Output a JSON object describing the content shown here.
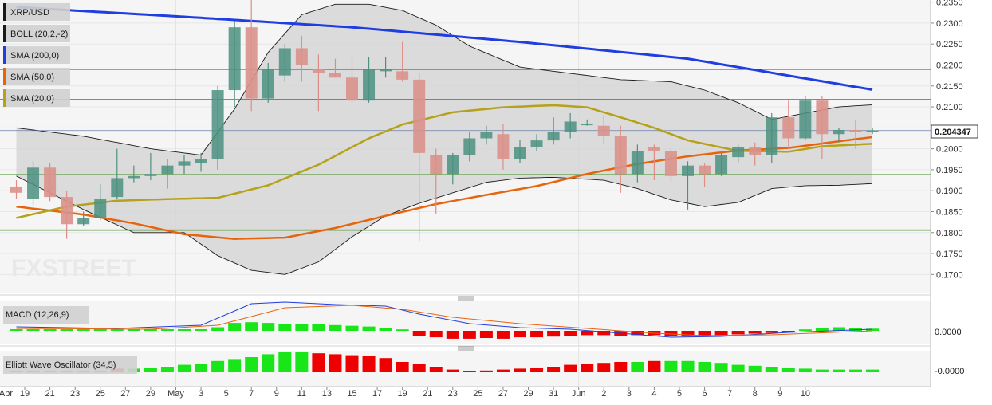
{
  "legend": [
    {
      "label": "XRP/USD",
      "color": "#1a1a1a"
    },
    {
      "label": "BOLL (20,2,-2)",
      "color": "#1a1a1a"
    },
    {
      "label": "SMA (200,0)",
      "color": "#1f3de0"
    },
    {
      "label": "SMA (50,0)",
      "color": "#e8640c"
    },
    {
      "label": "SMA (20,0)",
      "color": "#b5a21a"
    }
  ],
  "watermark": "FXSTREET",
  "last_price": "0.204347",
  "macd_label": "MACD (12,26,9)",
  "ewo_label": "Elliott Wave Oscillator (34,5)",
  "macd_tick": "0.0000",
  "ewo_tick": "-0.0000",
  "colors": {
    "up": "#4b9180",
    "down": "#e08c86",
    "upFill": "#7fa99b",
    "downFill": "#d9928b",
    "green": "#18e618",
    "red": "#ee0000"
  },
  "chart_data": {
    "type": "candlestick",
    "ylim": [
      0.1655,
      0.2355
    ],
    "y_ticks": [
      "0.2350",
      "0.2300",
      "0.2250",
      "0.2200",
      "0.2150",
      "0.2100",
      "0.2050",
      "0.2000",
      "0.1950",
      "0.1900",
      "0.1850",
      "0.1800",
      "0.1750",
      "0.1700"
    ],
    "x_ticks": [
      "Apr",
      "19",
      "21",
      "23",
      "25",
      "27",
      "29",
      "May",
      "3",
      "5",
      "7",
      "9",
      "11",
      "13",
      "15",
      "17",
      "19",
      "21",
      "23",
      "25",
      "27",
      "29",
      "31",
      "Jun",
      "2",
      "3",
      "4",
      "5",
      "6",
      "7",
      "8",
      "9",
      "10"
    ],
    "candles": [
      {
        "o": 0.191,
        "h": 0.1925,
        "l": 0.188,
        "c": 0.1895
      },
      {
        "o": 0.188,
        "h": 0.197,
        "l": 0.1865,
        "c": 0.1955
      },
      {
        "o": 0.1955,
        "h": 0.1965,
        "l": 0.1875,
        "c": 0.1885
      },
      {
        "o": 0.1885,
        "h": 0.19,
        "l": 0.1785,
        "c": 0.182
      },
      {
        "o": 0.182,
        "h": 0.185,
        "l": 0.1815,
        "c": 0.1835
      },
      {
        "o": 0.1835,
        "h": 0.1915,
        "l": 0.183,
        "c": 0.188
      },
      {
        "o": 0.1885,
        "h": 0.2,
        "l": 0.188,
        "c": 0.193
      },
      {
        "o": 0.193,
        "h": 0.196,
        "l": 0.192,
        "c": 0.1935
      },
      {
        "o": 0.1935,
        "h": 0.199,
        "l": 0.1925,
        "c": 0.194
      },
      {
        "o": 0.194,
        "h": 0.1975,
        "l": 0.1905,
        "c": 0.196
      },
      {
        "o": 0.196,
        "h": 0.1985,
        "l": 0.194,
        "c": 0.197
      },
      {
        "o": 0.1965,
        "h": 0.199,
        "l": 0.1945,
        "c": 0.1975
      },
      {
        "o": 0.1975,
        "h": 0.215,
        "l": 0.195,
        "c": 0.214
      },
      {
        "o": 0.214,
        "h": 0.2305,
        "l": 0.21,
        "c": 0.229
      },
      {
        "o": 0.229,
        "h": 0.2355,
        "l": 0.209,
        "c": 0.212
      },
      {
        "o": 0.212,
        "h": 0.2205,
        "l": 0.211,
        "c": 0.219
      },
      {
        "o": 0.2175,
        "h": 0.225,
        "l": 0.216,
        "c": 0.224
      },
      {
        "o": 0.224,
        "h": 0.227,
        "l": 0.216,
        "c": 0.22
      },
      {
        "o": 0.219,
        "h": 0.2225,
        "l": 0.209,
        "c": 0.218
      },
      {
        "o": 0.218,
        "h": 0.2215,
        "l": 0.217,
        "c": 0.217
      },
      {
        "o": 0.217,
        "h": 0.222,
        "l": 0.211,
        "c": 0.2115
      },
      {
        "o": 0.2115,
        "h": 0.222,
        "l": 0.211,
        "c": 0.219
      },
      {
        "o": 0.2185,
        "h": 0.222,
        "l": 0.217,
        "c": 0.219
      },
      {
        "o": 0.2185,
        "h": 0.2255,
        "l": 0.216,
        "c": 0.2165
      },
      {
        "o": 0.2165,
        "h": 0.218,
        "l": 0.178,
        "c": 0.199
      },
      {
        "o": 0.1985,
        "h": 0.2,
        "l": 0.1845,
        "c": 0.194
      },
      {
        "o": 0.194,
        "h": 0.199,
        "l": 0.1915,
        "c": 0.1985
      },
      {
        "o": 0.1985,
        "h": 0.204,
        "l": 0.197,
        "c": 0.2025
      },
      {
        "o": 0.2025,
        "h": 0.2055,
        "l": 0.201,
        "c": 0.204
      },
      {
        "o": 0.2035,
        "h": 0.206,
        "l": 0.195,
        "c": 0.1975
      },
      {
        "o": 0.1975,
        "h": 0.202,
        "l": 0.1965,
        "c": 0.2005
      },
      {
        "o": 0.2005,
        "h": 0.2035,
        "l": 0.1995,
        "c": 0.202
      },
      {
        "o": 0.202,
        "h": 0.2075,
        "l": 0.201,
        "c": 0.204
      },
      {
        "o": 0.204,
        "h": 0.2085,
        "l": 0.2025,
        "c": 0.2065
      },
      {
        "o": 0.206,
        "h": 0.207,
        "l": 0.2055,
        "c": 0.206
      },
      {
        "o": 0.2055,
        "h": 0.208,
        "l": 0.201,
        "c": 0.203
      },
      {
        "o": 0.203,
        "h": 0.2055,
        "l": 0.1895,
        "c": 0.194
      },
      {
        "o": 0.194,
        "h": 0.201,
        "l": 0.192,
        "c": 0.1995
      },
      {
        "o": 0.2005,
        "h": 0.201,
        "l": 0.1925,
        "c": 0.1995
      },
      {
        "o": 0.1995,
        "h": 0.2,
        "l": 0.192,
        "c": 0.1935
      },
      {
        "o": 0.1935,
        "h": 0.197,
        "l": 0.1855,
        "c": 0.196
      },
      {
        "o": 0.196,
        "h": 0.1965,
        "l": 0.191,
        "c": 0.194
      },
      {
        "o": 0.194,
        "h": 0.199,
        "l": 0.1935,
        "c": 0.1985
      },
      {
        "o": 0.198,
        "h": 0.201,
        "l": 0.1965,
        "c": 0.2005
      },
      {
        "o": 0.2005,
        "h": 0.2015,
        "l": 0.196,
        "c": 0.1985
      },
      {
        "o": 0.1985,
        "h": 0.2085,
        "l": 0.1965,
        "c": 0.2075
      },
      {
        "o": 0.2075,
        "h": 0.2115,
        "l": 0.2,
        "c": 0.2025
      },
      {
        "o": 0.2025,
        "h": 0.2125,
        "l": 0.202,
        "c": 0.2115
      },
      {
        "o": 0.2115,
        "h": 0.2125,
        "l": 0.1975,
        "c": 0.2035
      },
      {
        "o": 0.2035,
        "h": 0.205,
        "l": 0.2015,
        "c": 0.2045
      },
      {
        "o": 0.2045,
        "h": 0.207,
        "l": 0.2,
        "c": 0.204
      },
      {
        "o": 0.204,
        "h": 0.205,
        "l": 0.2035,
        "c": 0.2044
      }
    ],
    "levels": [
      {
        "value": 0.219,
        "color": "#ee0000"
      },
      {
        "value": 0.2117,
        "color": "#ee0000"
      },
      {
        "value": 0.1938,
        "color": "#3d8c1f"
      },
      {
        "value": 0.1806,
        "color": "#3d8c1f"
      }
    ],
    "sma200": [
      [
        0,
        0.2338
      ],
      [
        10,
        0.2315
      ],
      [
        20,
        0.229
      ],
      [
        30,
        0.2255
      ],
      [
        40,
        0.2215
      ],
      [
        51,
        0.2141
      ]
    ],
    "sma50": [
      [
        0,
        0.1862
      ],
      [
        4,
        0.1843
      ],
      [
        7,
        0.1822
      ],
      [
        10,
        0.1796
      ],
      [
        13,
        0.1785
      ],
      [
        16,
        0.1788
      ],
      [
        19,
        0.1811
      ],
      [
        22,
        0.184
      ],
      [
        25,
        0.1868
      ],
      [
        28,
        0.189
      ],
      [
        31,
        0.1911
      ],
      [
        34,
        0.194
      ],
      [
        37,
        0.1964
      ],
      [
        40,
        0.1982
      ],
      [
        43,
        0.1996
      ],
      [
        46,
        0.2002
      ],
      [
        49,
        0.2018
      ],
      [
        51,
        0.2028
      ]
    ],
    "sma20": [
      [
        0,
        0.1835
      ],
      [
        3,
        0.1862
      ],
      [
        6,
        0.1876
      ],
      [
        9,
        0.188
      ],
      [
        12,
        0.1883
      ],
      [
        15,
        0.1913
      ],
      [
        18,
        0.1962
      ],
      [
        21,
        0.2025
      ],
      [
        23,
        0.2058
      ],
      [
        26,
        0.2087
      ],
      [
        29,
        0.2099
      ],
      [
        32,
        0.2104
      ],
      [
        34,
        0.2099
      ],
      [
        36,
        0.2075
      ],
      [
        38,
        0.205
      ],
      [
        40,
        0.202
      ],
      [
        43,
        0.1995
      ],
      [
        46,
        0.1993
      ],
      [
        48,
        0.2006
      ],
      [
        51,
        0.2012
      ]
    ],
    "boll_upper": [
      [
        0,
        0.205
      ],
      [
        4,
        0.203
      ],
      [
        8,
        0.2
      ],
      [
        11,
        0.1985
      ],
      [
        13,
        0.2095
      ],
      [
        15,
        0.223
      ],
      [
        17,
        0.232
      ],
      [
        19,
        0.2345
      ],
      [
        21,
        0.2345
      ],
      [
        23,
        0.233
      ],
      [
        25,
        0.2295
      ],
      [
        27,
        0.2245
      ],
      [
        30,
        0.2195
      ],
      [
        33,
        0.218
      ],
      [
        36,
        0.2165
      ],
      [
        39,
        0.216
      ],
      [
        41,
        0.214
      ],
      [
        43,
        0.211
      ],
      [
        45,
        0.207
      ],
      [
        47,
        0.2085
      ],
      [
        49,
        0.21
      ],
      [
        51,
        0.2105
      ]
    ],
    "boll_lower": [
      [
        0,
        0.1935
      ],
      [
        4,
        0.1855
      ],
      [
        7,
        0.18
      ],
      [
        10,
        0.18
      ],
      [
        12,
        0.1745
      ],
      [
        14,
        0.171
      ],
      [
        16,
        0.17
      ],
      [
        18,
        0.173
      ],
      [
        20,
        0.179
      ],
      [
        22,
        0.184
      ],
      [
        24,
        0.187
      ],
      [
        26,
        0.1895
      ],
      [
        28,
        0.192
      ],
      [
        30,
        0.193
      ],
      [
        32,
        0.1932
      ],
      [
        35,
        0.1925
      ],
      [
        37,
        0.1905
      ],
      [
        39,
        0.1878
      ],
      [
        41,
        0.1862
      ],
      [
        43,
        0.1872
      ],
      [
        45,
        0.1905
      ],
      [
        47,
        0.1912
      ],
      [
        49,
        0.1913
      ],
      [
        51,
        0.1917
      ]
    ],
    "macd_hist": [
      0,
      0,
      0,
      0,
      0,
      0,
      0,
      0,
      0,
      0,
      0,
      0,
      0.25,
      0.55,
      0.6,
      0.55,
      0.5,
      0.5,
      0.45,
      0.4,
      0.35,
      0.3,
      0.2,
      0.1,
      -0.35,
      -0.45,
      -0.55,
      -0.55,
      -0.5,
      -0.55,
      -0.45,
      -0.45,
      -0.4,
      -0.35,
      -0.3,
      -0.3,
      -0.35,
      -0.3,
      -0.3,
      -0.35,
      -0.4,
      -0.35,
      -0.3,
      -0.25,
      -0.2,
      -0.15,
      -0.1,
      0.1,
      0.2,
      0.25,
      0.2,
      0.15
    ],
    "ewo_hist": [
      0,
      0,
      0,
      0,
      0,
      0,
      -0.15,
      0.15,
      0.2,
      0.25,
      0.35,
      0.4,
      0.55,
      0.65,
      0.75,
      0.9,
      1.0,
      1.0,
      0.95,
      0.9,
      0.85,
      0.8,
      0.7,
      0.5,
      0.4,
      0.25,
      0.1,
      0,
      -0.05,
      -0.1,
      -0.15,
      -0.2,
      -0.25,
      -0.35,
      -0.4,
      -0.45,
      -0.5,
      -0.5,
      -0.55,
      -0.55,
      -0.55,
      -0.5,
      0.45,
      0.35,
      0.3,
      0.25,
      0.2,
      0.15,
      0.1,
      0.1,
      0.1,
      0.1
    ]
  }
}
